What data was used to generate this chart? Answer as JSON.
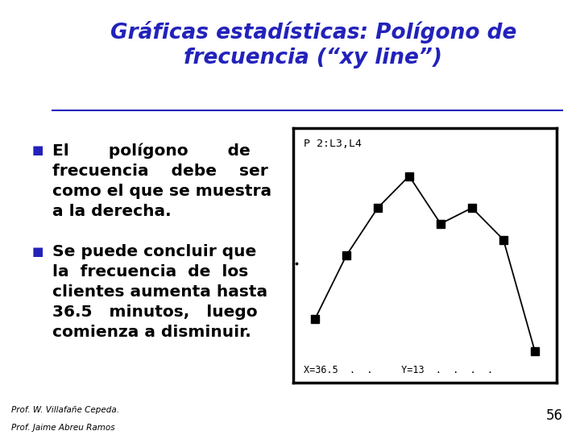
{
  "title_line1": "Gráficas estadísticas: Polígono de",
  "title_line2": "frecuencia (“xy line”)",
  "title_color": "#2222bb",
  "title_fontsize": 19,
  "background_color": "#ffffff",
  "bullet_color": "#2222bb",
  "bullet_text_color": "#000000",
  "bullet1": "El       polígono       de\nfrecuencia    debe    ser\ncomo el que se muestra\na la derecha.",
  "bullet2": "Se puede concluir que\nla  frecuencia  de  los\nclientes aumenta hasta\n36.5   minutos,   luego\ncomienza a disminuir.",
  "footer_line1": "Prof. W. Villafañe Cepeda.",
  "footer_line2": "Prof. Jaime Abreu Ramos",
  "page_number": "56",
  "chart_label": "P 2:L3,L4",
  "chart_bottom_text": "X=36.5  .  .     Y=13  .  .  .  .",
  "chart_x": [
    21.5,
    26.5,
    31.5,
    36.5,
    41.5,
    46.5,
    51.5,
    56.5
  ],
  "chart_y": [
    4,
    8,
    11,
    13,
    10,
    11,
    9,
    2
  ],
  "chart_marker_size": 7,
  "logo_yellow": "#f5c200",
  "logo_pink": "#ee8888",
  "logo_blue": "#2222bb",
  "logo_dark": "#111111",
  "divider_color": "#444444"
}
